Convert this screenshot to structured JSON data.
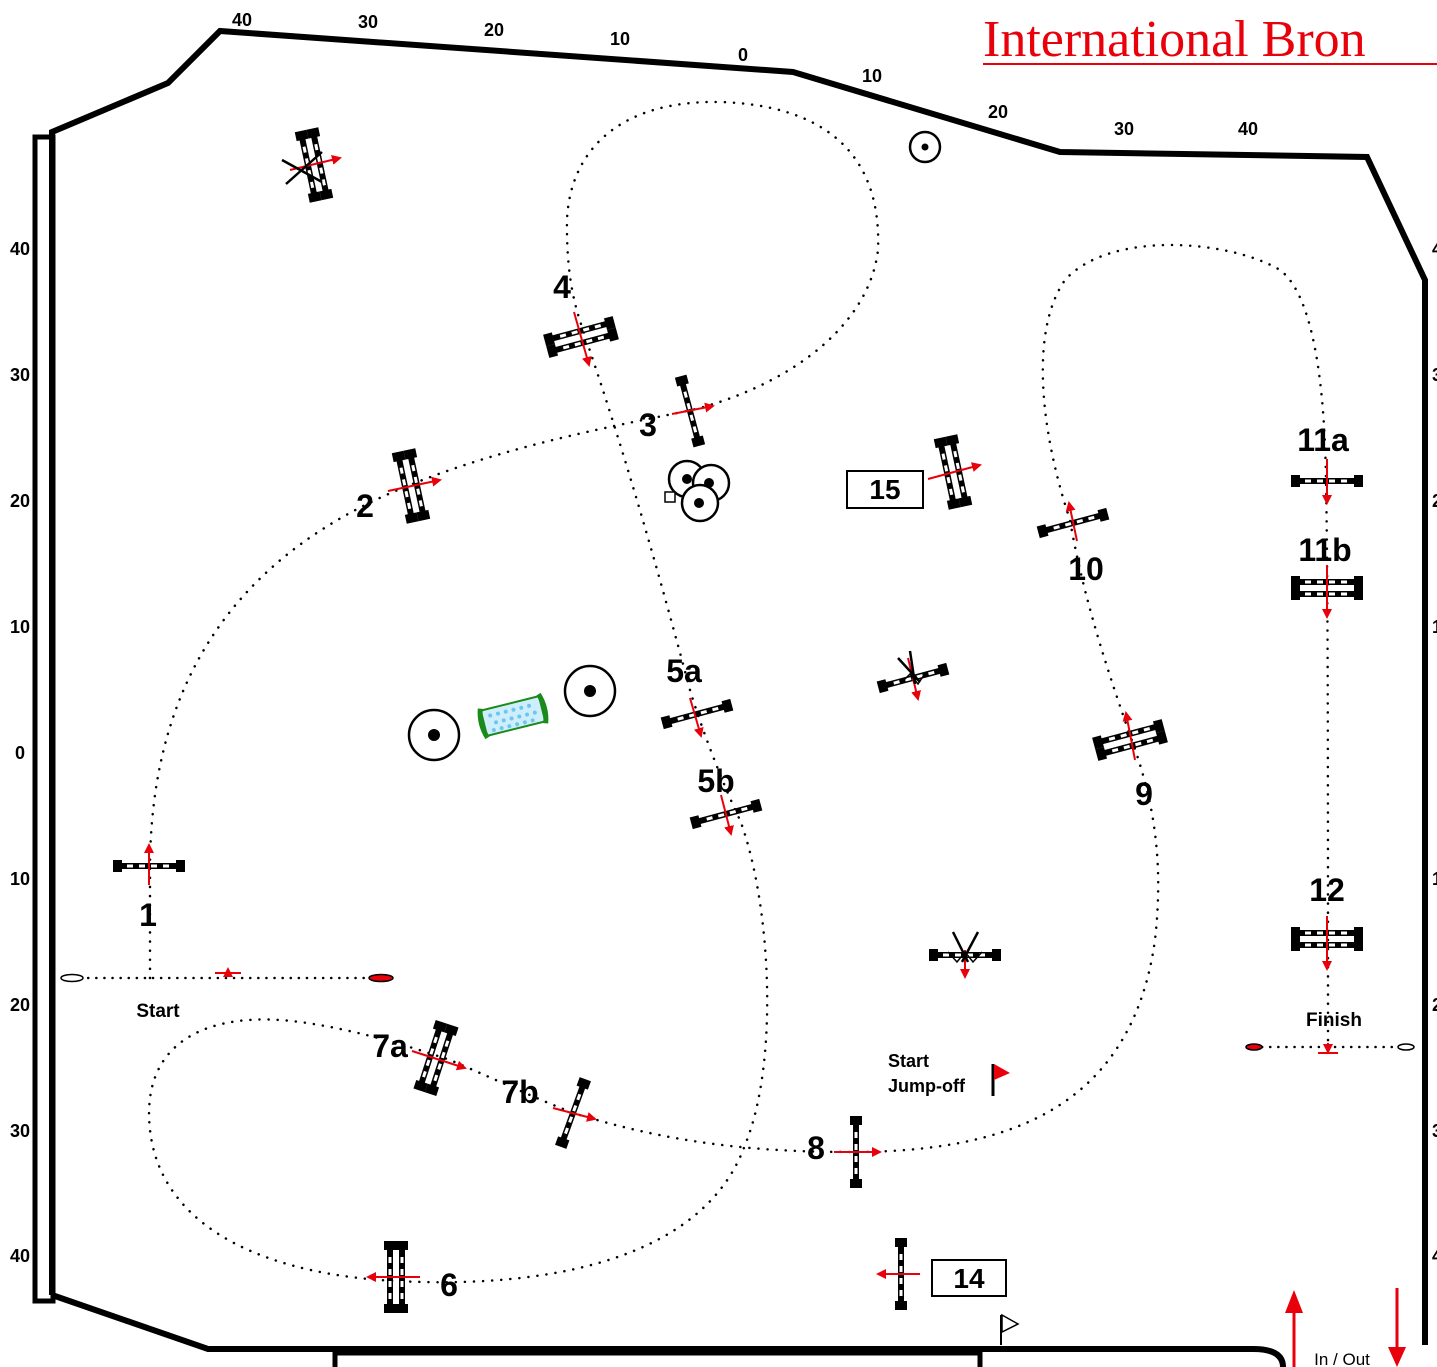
{
  "title": "International Bron",
  "colors": {
    "accent_red": "#e8000b",
    "fence_black": "#000000",
    "water_blue": "#6cc6f0",
    "water_green": "#1a8a1a"
  },
  "rulers": {
    "top": [
      "40",
      "30",
      "20",
      "10",
      "0",
      "10",
      "20",
      "30",
      "40"
    ],
    "left": [
      "40",
      "30",
      "20",
      "10",
      "0",
      "10",
      "20",
      "30",
      "40"
    ]
  },
  "obstacles": {
    "o1": "1",
    "o2": "2",
    "o3": "3",
    "o4": "4",
    "o5a": "5a",
    "o5b": "5b",
    "o6": "6",
    "o7a": "7a",
    "o7b": "7b",
    "o8": "8",
    "o9": "9",
    "o10": "10",
    "o11a": "11a",
    "o11b": "11b",
    "o12": "12",
    "o14": "14",
    "o15": "15"
  },
  "labels": {
    "start": "Start",
    "finish": "Finish",
    "jumpoff_line1": "Start",
    "jumpoff_line2": "Jump-off",
    "in_out": "In / Out"
  },
  "icons": [
    "flag-icon",
    "in-arrow-icon",
    "out-arrow-icon",
    "tree-icon",
    "decoration-icon"
  ]
}
